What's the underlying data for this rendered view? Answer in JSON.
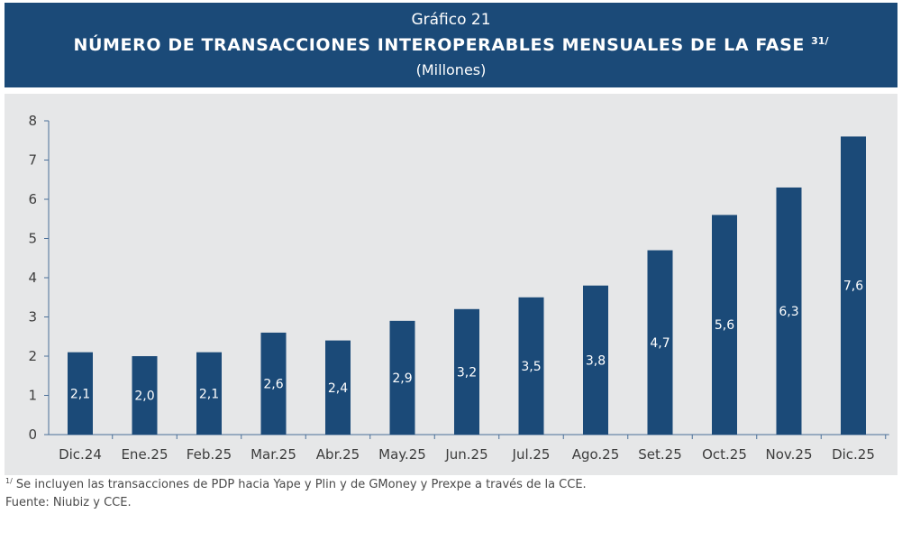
{
  "header": {
    "kicker": "Gráfico 21",
    "title": "NÚMERO DE TRANSACCIONES INTEROPERABLES MENSUALES DE LA FASE",
    "title_note": "31/",
    "unit": "(Millones)"
  },
  "footnote": {
    "mark": "1/",
    "text": " Se incluyen las transacciones de PDP hacia Yape y Plin y de GMoney y Prexpe a través de la CCE."
  },
  "source": "Fuente: Niubiz y CCE.",
  "colors": {
    "header_bg": "#1b4a78",
    "bar": "#1b4a78",
    "panel_bg": "#e6e7e8",
    "bar_label": "#ffffff"
  },
  "chart_data": {
    "type": "bar",
    "categories": [
      "Dic.24",
      "Ene.25",
      "Feb.25",
      "Mar.25",
      "Abr.25",
      "May.25",
      "Jun.25",
      "Jul.25",
      "Ago.25",
      "Set.25",
      "Oct.25",
      "Nov.25",
      "Dic.25"
    ],
    "values": [
      2.1,
      2.0,
      2.1,
      2.6,
      2.4,
      2.9,
      3.2,
      3.5,
      3.8,
      4.7,
      5.6,
      6.3,
      7.6
    ],
    "data_labels": [
      "2,1",
      "2,0",
      "2,1",
      "2,6",
      "2,4",
      "2,9",
      "3,2",
      "3,5",
      "3,8",
      "4,7",
      "5,6",
      "6,3",
      "7,6"
    ],
    "yticks": [
      "0",
      "1",
      "2",
      "3",
      "4",
      "5",
      "6",
      "7",
      "8"
    ],
    "ylim": [
      0,
      8
    ],
    "grid": false,
    "legend": "none"
  }
}
